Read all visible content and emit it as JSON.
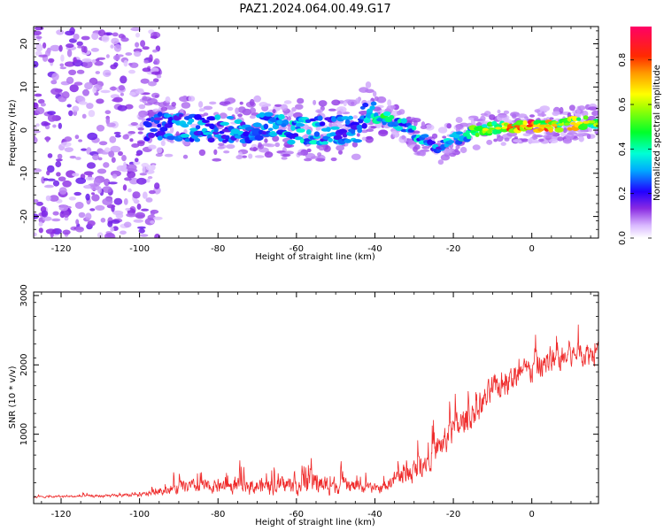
{
  "figure": {
    "title": "PAZ1.2024.064.00.49.G17"
  },
  "chart_data": [
    {
      "type": "heatmap",
      "xlabel": "Height of straight line (km)",
      "ylabel": "Frequency (Hz)",
      "xlim": [
        -127,
        17
      ],
      "ylim": [
        -25,
        24
      ],
      "xticks": [
        -120,
        -100,
        -80,
        -60,
        -40,
        -20,
        0
      ],
      "yticks": [
        -20,
        -10,
        0,
        10,
        20
      ],
      "colorbar": {
        "label": "Normalized spectral amplitude",
        "range": [
          0,
          0.95
        ],
        "ticks": [
          "0.0",
          "0.2",
          "0.4",
          "0.6",
          "0.8"
        ],
        "colormap": "gist_rainbow_r"
      },
      "ridge": [
        {
          "x": -126,
          "freq": 0,
          "amp": 0.1
        },
        {
          "x": -110,
          "freq": 0,
          "amp": 0.15
        },
        {
          "x": -96,
          "freq": 1,
          "amp": 0.25
        },
        {
          "x": -90,
          "freq": 1,
          "amp": 0.3
        },
        {
          "x": -82,
          "freq": 0,
          "amp": 0.3
        },
        {
          "x": -75,
          "freq": 0,
          "amp": 0.3
        },
        {
          "x": -68,
          "freq": 1,
          "amp": 0.3
        },
        {
          "x": -62,
          "freq": 0,
          "amp": 0.35
        },
        {
          "x": -56,
          "freq": 0,
          "amp": 0.35
        },
        {
          "x": -50,
          "freq": 0,
          "amp": 0.3
        },
        {
          "x": -45,
          "freq": 0,
          "amp": 0.3
        },
        {
          "x": -43,
          "freq": 4,
          "amp": 0.35
        },
        {
          "x": -38,
          "freq": 3,
          "amp": 0.45
        },
        {
          "x": -33,
          "freq": 1,
          "amp": 0.35
        },
        {
          "x": -28,
          "freq": -2,
          "amp": 0.35
        },
        {
          "x": -24,
          "freq": -4,
          "amp": 0.3
        },
        {
          "x": -20,
          "freq": -2,
          "amp": 0.35
        },
        {
          "x": -17,
          "freq": -1,
          "amp": 0.4
        },
        {
          "x": -14,
          "freq": 0,
          "amp": 0.55
        },
        {
          "x": -8,
          "freq": 0.5,
          "amp": 0.7
        },
        {
          "x": -2,
          "freq": 1,
          "amp": 0.85
        },
        {
          "x": 4,
          "freq": 1,
          "amp": 0.75
        },
        {
          "x": 10,
          "freq": 1.5,
          "amp": 0.65
        },
        {
          "x": 16,
          "freq": 2,
          "amp": 0.6
        }
      ]
    },
    {
      "type": "line",
      "xlabel": "Height of straight line (km)",
      "ylabel": "SNR (10 * v/v)",
      "xlim": [
        -127,
        17
      ],
      "ylim": [
        0,
        3050
      ],
      "xticks": [
        -120,
        -100,
        -80,
        -60,
        -40,
        -20,
        0
      ],
      "yticks": [
        1000,
        2000,
        3000
      ],
      "color": "#ef2b2b",
      "envelope": {
        "x": [
          -127,
          -110,
          -100,
          -96,
          -90,
          -80,
          -70,
          -60,
          -55,
          -50,
          -45,
          -40,
          -38,
          -35,
          -30,
          -25,
          -20,
          -15,
          -10,
          -5,
          0,
          5,
          10,
          15,
          17
        ],
        "base": [
          90,
          100,
          110,
          150,
          200,
          200,
          200,
          210,
          220,
          210,
          200,
          180,
          200,
          300,
          400,
          650,
          950,
          1200,
          1550,
          1700,
          1850,
          1950,
          2050,
          2100,
          2100
        ],
        "spread": [
          40,
          60,
          80,
          150,
          300,
          330,
          380,
          450,
          500,
          400,
          330,
          200,
          250,
          400,
          550,
          600,
          700,
          700,
          650,
          650,
          650,
          600,
          600,
          550,
          550
        ]
      }
    }
  ]
}
